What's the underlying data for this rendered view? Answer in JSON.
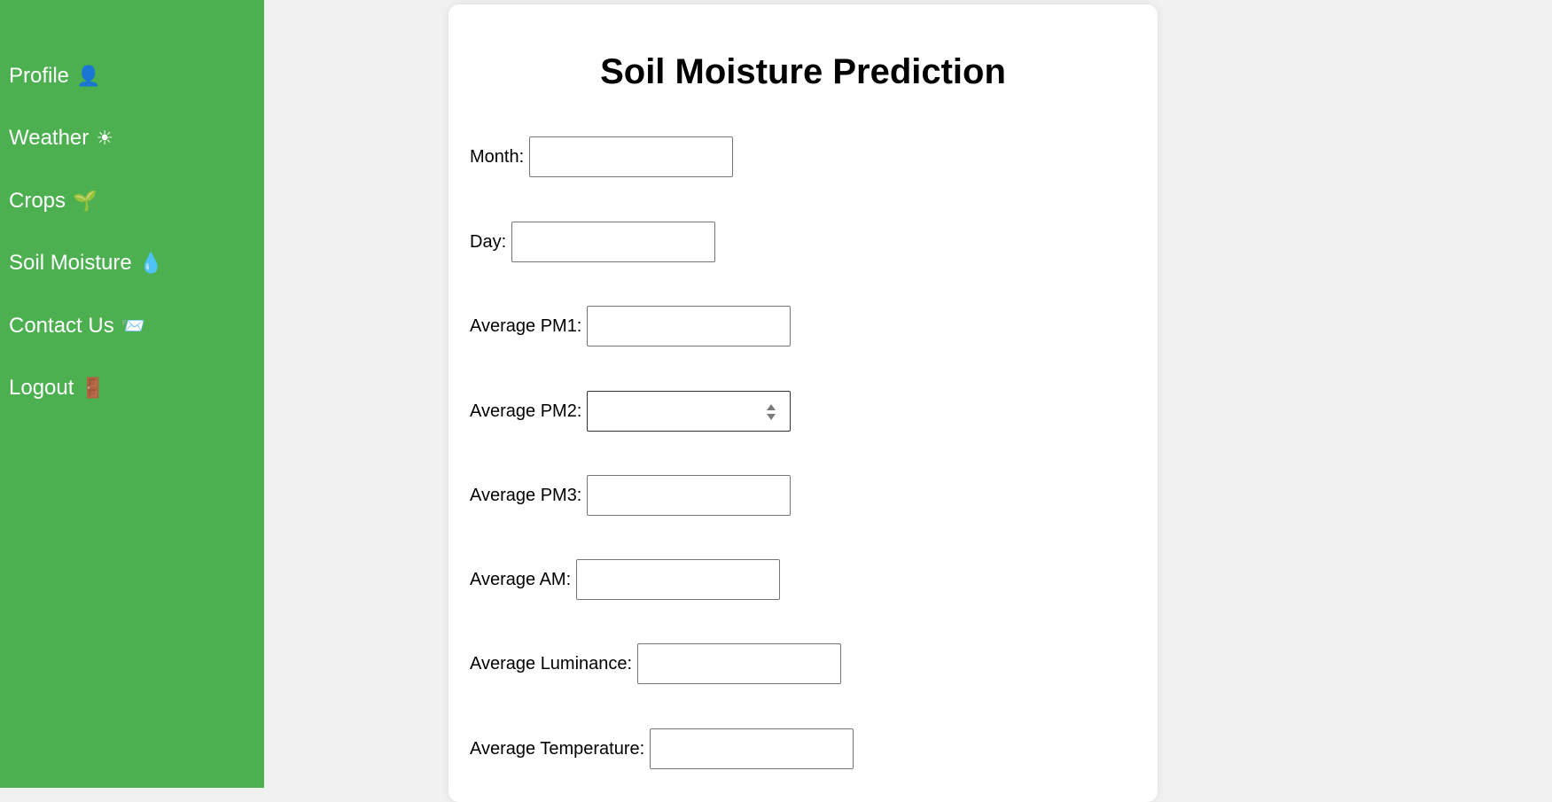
{
  "sidebar": {
    "items": [
      {
        "label": "Profile",
        "icon": "👤",
        "icon_name": "profile-icon"
      },
      {
        "label": "Weather",
        "icon": "☀",
        "icon_name": "sun-icon"
      },
      {
        "label": "Crops",
        "icon": "🌱",
        "icon_name": "seedling-icon"
      },
      {
        "label": "Soil Moisture",
        "icon": "💧",
        "icon_name": "droplet-icon"
      },
      {
        "label": "Contact Us",
        "icon": "📨",
        "icon_name": "envelope-icon"
      },
      {
        "label": "Logout",
        "icon": "🚪",
        "icon_name": "door-icon"
      }
    ],
    "background": "#4caf50"
  },
  "form": {
    "title": "Soil Moisture Prediction",
    "fields": [
      {
        "label": "Month:",
        "value": ""
      },
      {
        "label": "Day:",
        "value": ""
      },
      {
        "label": "Average PM1:",
        "value": ""
      },
      {
        "label": "Average PM2:",
        "value": ""
      },
      {
        "label": "Average PM3:",
        "value": ""
      },
      {
        "label": "Average AM:",
        "value": ""
      },
      {
        "label": "Average Luminance:",
        "value": ""
      },
      {
        "label": "Average Temperature:",
        "value": ""
      }
    ]
  }
}
